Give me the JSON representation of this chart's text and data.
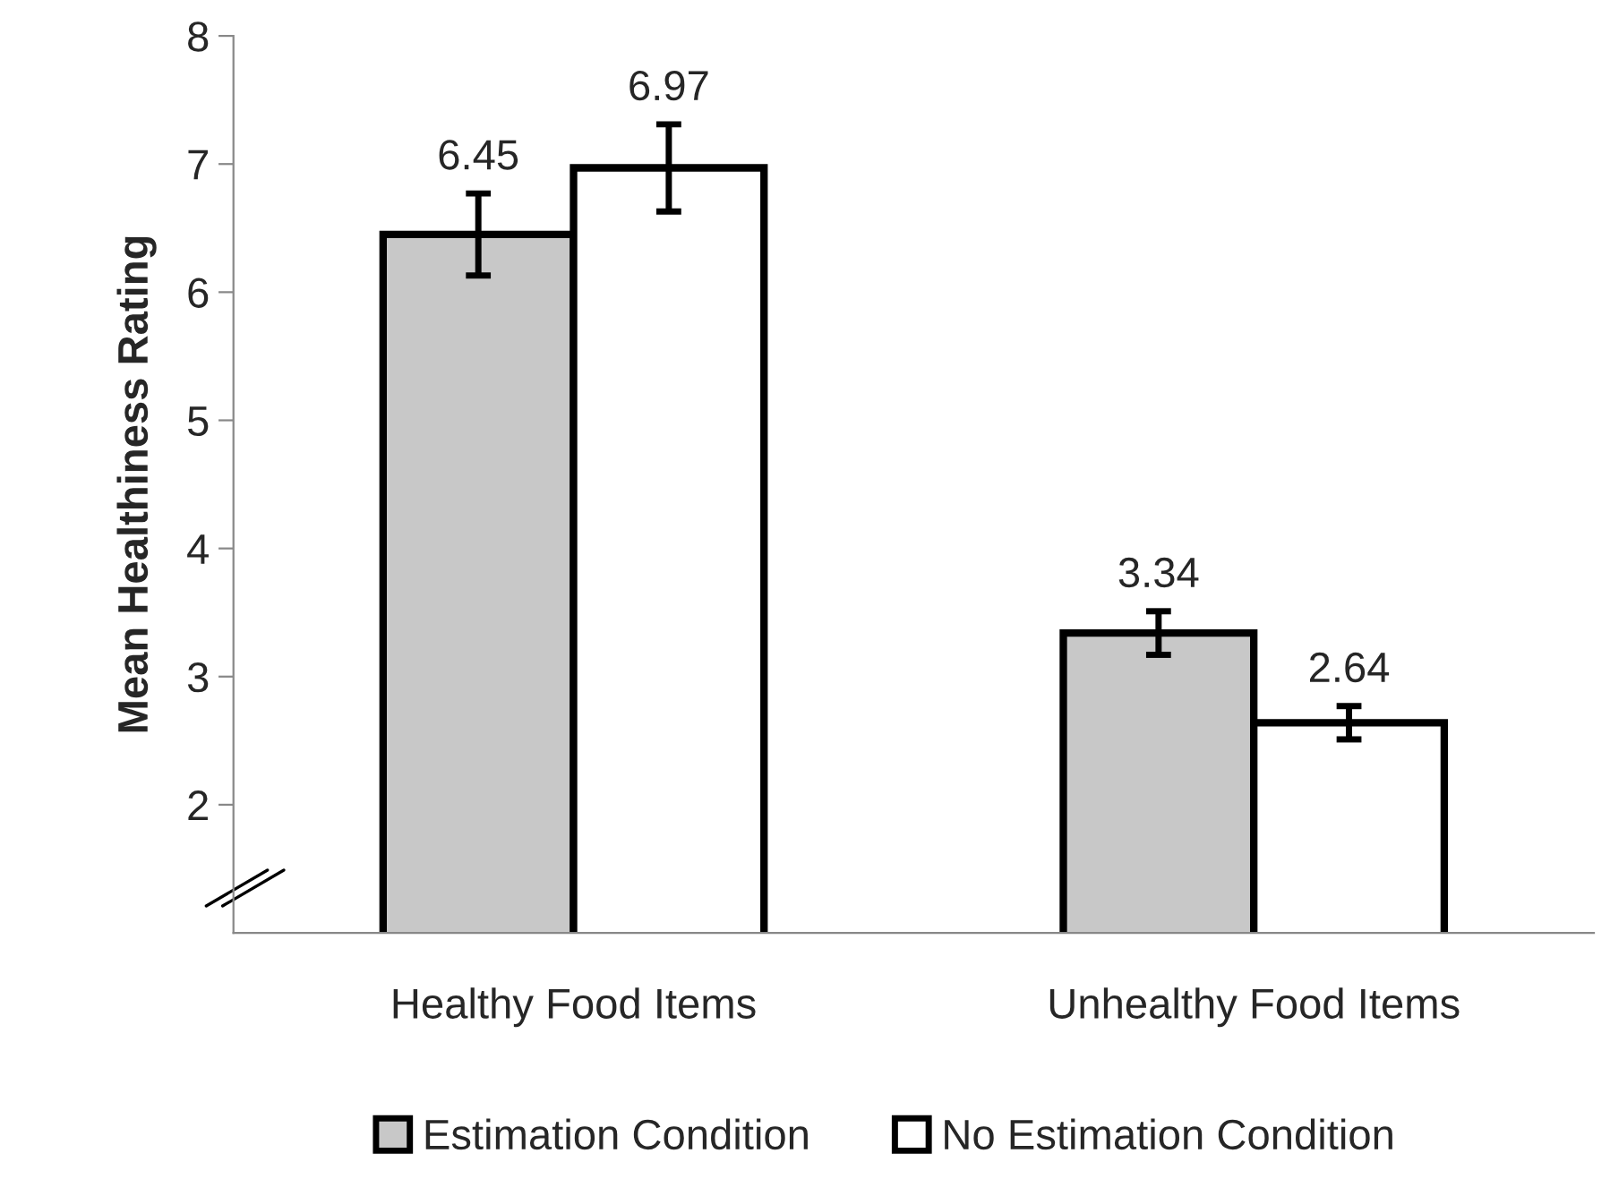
{
  "chart_data": {
    "type": "bar",
    "ylabel": "Mean Healthiness Rating",
    "categories": [
      "Healthy Food Items",
      "Unhealthy Food Items"
    ],
    "series": [
      {
        "name": "Estimation Condition",
        "color": "#c8c8c8",
        "values": [
          6.45,
          3.34
        ],
        "errors": [
          0.32,
          0.17
        ]
      },
      {
        "name": "No Estimation Condition",
        "color": "#ffffff",
        "values": [
          6.97,
          2.64
        ],
        "errors": [
          0.34,
          0.13
        ]
      }
    ],
    "ylim": [
      1,
      8
    ],
    "yticks": [
      2,
      3,
      4,
      5,
      6,
      7,
      8
    ],
    "data_labels": true,
    "grid": false,
    "legend": "bottom"
  }
}
